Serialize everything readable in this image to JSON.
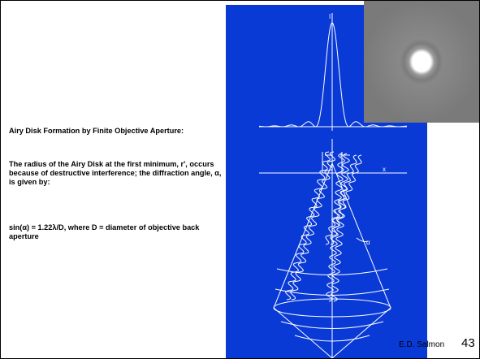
{
  "slide": {
    "title": "Airy Disk Formation by Finite Objective Aperture:",
    "paragraph": "The radius of the Airy Disk at the first minimum, r',  occurs because of destructive interference; the diffraction angle, α, is given by:",
    "formula": "sin(α) = 1.22λ/D, where D = diameter of objective back aperture",
    "diagram_labels": {
      "intensity": "I",
      "radius": "r",
      "axis": "x",
      "angle": "α"
    },
    "credit": "E.D. Salmon",
    "page_number": "43"
  }
}
